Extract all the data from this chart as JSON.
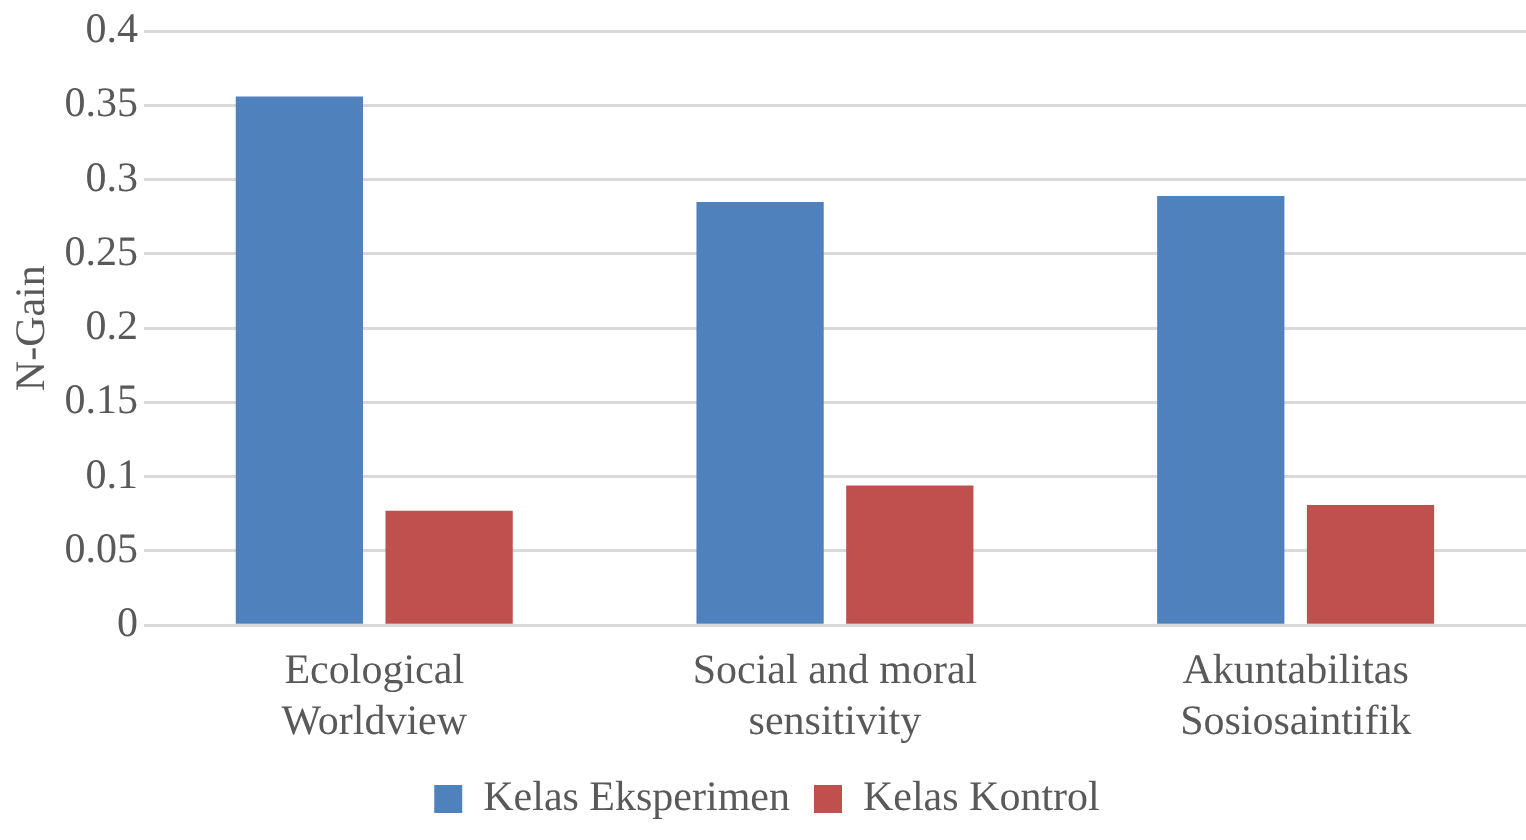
{
  "chart_data": {
    "type": "bar",
    "ylabel": "N-Gain",
    "categories": [
      "Ecological Worldview",
      "Social and moral sensitivity",
      "Akuntabilitas Sosiosaintifik"
    ],
    "series": [
      {
        "name": "Kelas Eksperimen",
        "color": "#4f81bd",
        "values": [
          0.356,
          0.285,
          0.289
        ]
      },
      {
        "name": "Kelas Kontrol",
        "color": "#c0504d",
        "values": [
          0.077,
          0.094,
          0.081
        ]
      }
    ],
    "ylim": [
      0,
      0.4
    ],
    "yticks": [
      0,
      0.05,
      0.1,
      0.15,
      0.2,
      0.25,
      0.3,
      0.35,
      0.4
    ],
    "grid": "y",
    "legend": "bottom"
  }
}
